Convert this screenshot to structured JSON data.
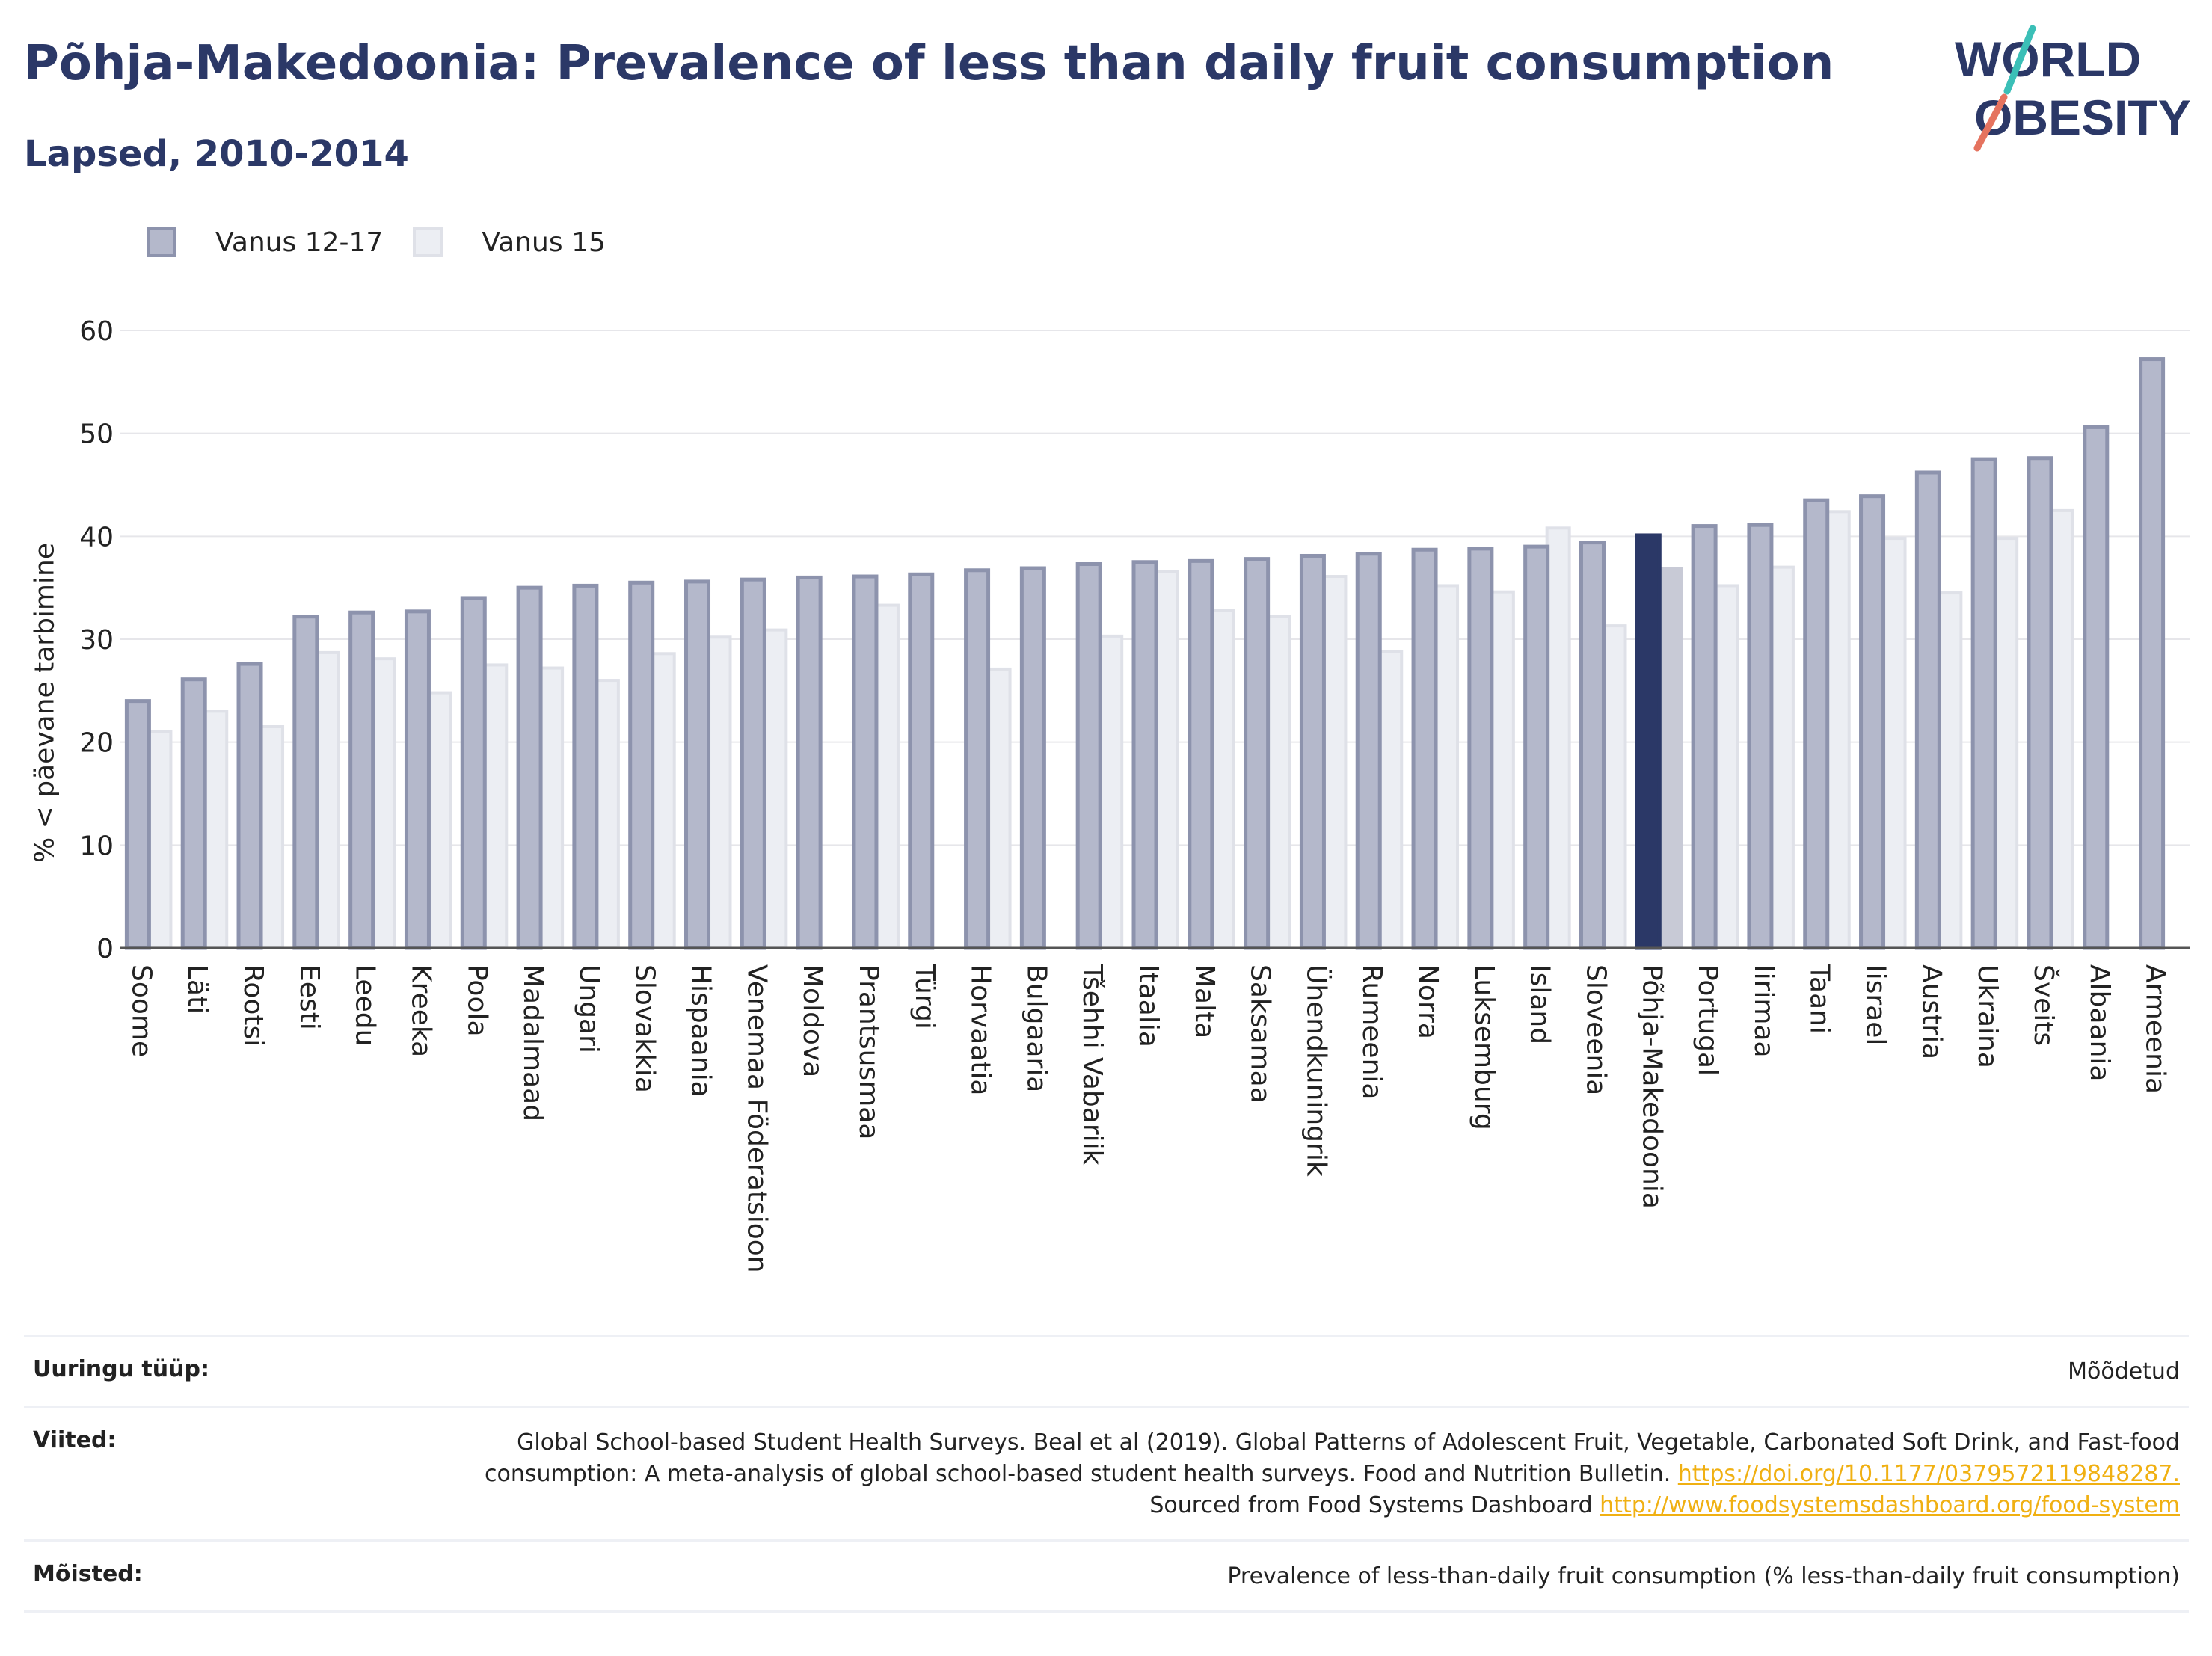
{
  "header": {
    "title": "Põhja-Makedoonia: Prevalence of less than daily fruit consumption",
    "subtitle": "Lapsed, 2010-2014"
  },
  "logo": {
    "line1": "WORLD",
    "line2": "OBESITY"
  },
  "legend": [
    {
      "label": "Vanus 12-17",
      "color": "#b4b8cb"
    },
    {
      "label": "Vanus 15",
      "color": "#eceef3"
    }
  ],
  "colors": {
    "highlight": "#2b3867",
    "highlight_secondary": "#c8cad6",
    "axis": "#555555",
    "grid": "#e6e6ea"
  },
  "chart_data": {
    "type": "bar",
    "title": "Põhja-Makedoonia: Prevalence of less than daily fruit consumption",
    "subtitle": "Lapsed, 2010-2014",
    "ylabel": "% < päevane tarbimine",
    "ylim": [
      0,
      60
    ],
    "yticks": [
      0,
      10,
      20,
      30,
      40,
      50,
      60
    ],
    "grid": true,
    "legend_position": "top-left",
    "highlight_category": "Põhja-Makedoonia",
    "categories": [
      "Soome",
      "Läti",
      "Rootsi",
      "Eesti",
      "Leedu",
      "Kreeka",
      "Poola",
      "Madalmaad",
      "Ungari",
      "Slovakkia",
      "Hispaania",
      "Venemaa Föderatsioon",
      "Moldova",
      "Prantsusmaa",
      "Türgi",
      "Horvaatia",
      "Bulgaaria",
      "Tšehhi Vabariik",
      "Itaalia",
      "Malta",
      "Saksamaa",
      "Ühendkuningrik",
      "Rumeenia",
      "Norra",
      "Luksemburg",
      "Island",
      "Sloveenia",
      "Põhja-Makedoonia",
      "Portugal",
      "Iirimaa",
      "Taani",
      "Iisrael",
      "Austria",
      "Ukraina",
      "Šveits",
      "Albaania",
      "Armeenia"
    ],
    "series": [
      {
        "name": "Vanus 12-17",
        "values": [
          24.0,
          26.1,
          27.6,
          32.2,
          32.6,
          32.7,
          34.0,
          35.0,
          35.2,
          35.5,
          35.6,
          35.8,
          36.0,
          36.1,
          36.3,
          36.7,
          36.9,
          37.3,
          37.5,
          37.6,
          37.8,
          38.1,
          38.3,
          38.7,
          38.8,
          39.0,
          39.4,
          40.1,
          41.0,
          41.1,
          43.5,
          43.9,
          46.2,
          47.5,
          47.6,
          50.6,
          57.2
        ]
      },
      {
        "name": "Vanus 15",
        "values": [
          21.0,
          23.0,
          21.5,
          28.7,
          28.1,
          24.8,
          27.5,
          27.2,
          26.0,
          28.6,
          30.2,
          30.9,
          null,
          33.3,
          null,
          27.1,
          null,
          30.3,
          36.6,
          32.8,
          32.2,
          36.1,
          28.8,
          35.2,
          34.6,
          40.8,
          31.3,
          36.9,
          35.2,
          37.0,
          42.4,
          39.8,
          34.5,
          39.8,
          42.5,
          null,
          null
        ]
      }
    ]
  },
  "info": [
    {
      "key": "Uuringu tüüp:",
      "value": "Mõõdetud"
    },
    {
      "key": "Viited:",
      "value": "Global School-based Student Health Surveys. Beal et al (2019). Global Patterns of Adolescent Fruit, Vegetable, Carbonated Soft Drink, and Fast-food consumption: A meta-analysis of global school-based student health surveys. Food and Nutrition Bulletin.",
      "link1": "https://doi.org/10.1177/0379572119848287.",
      "middle": " Sourced from Food Systems Dashboard ",
      "link2": "http://www.foodsystemsdashboard.org/food-system"
    },
    {
      "key": "Mõisted:",
      "value": "Prevalence of less-than-daily fruit consumption (% less-than-daily fruit consumption)"
    }
  ]
}
